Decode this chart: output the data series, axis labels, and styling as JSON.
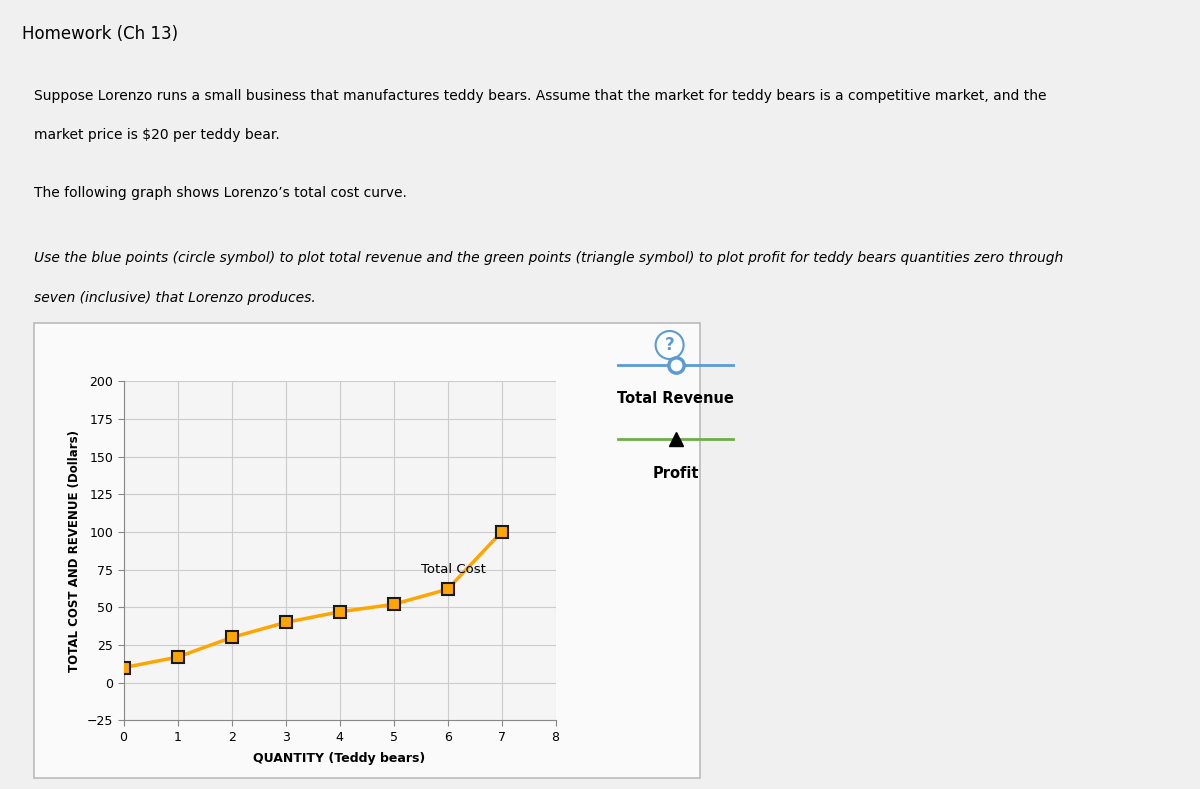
{
  "title_main": "Homework (Ch 13)",
  "desc_line1": "Suppose Lorenzo runs a small business that manufactures teddy bears. Assume that the market for teddy bears is a competitive market, and the",
  "desc_line2": "market price is $20 per teddy bear.",
  "desc_line3": "The following graph shows Lorenzo’s total cost curve.",
  "instruction_line1": "Use the blue points (circle symbol) to plot total revenue and the green points (triangle symbol) to plot profit for teddy bears quantities zero through",
  "instruction_line2": "seven (inclusive) that Lorenzo produces.",
  "quantities": [
    0,
    1,
    2,
    3,
    4,
    5,
    6,
    7
  ],
  "total_cost": [
    10,
    17,
    30,
    40,
    47,
    52,
    62,
    100
  ],
  "price": 20,
  "xlabel": "QUANTITY (Teddy bears)",
  "ylabel": "TOTAL COST AND REVENUE (Dollars)",
  "xlim": [
    0,
    8
  ],
  "ylim": [
    -25,
    200
  ],
  "yticks": [
    -25,
    0,
    25,
    50,
    75,
    100,
    125,
    150,
    175,
    200
  ],
  "xticks": [
    0,
    1,
    2,
    3,
    4,
    5,
    6,
    7,
    8
  ],
  "total_cost_color": "#FFA500",
  "total_cost_marker_edge": "#1a1a1a",
  "total_revenue_color": "#5B9BD5",
  "profit_color": "#70AD47",
  "grid_color": "#CCCCCC",
  "page_bg": "#F0F0F0",
  "header_bg": "#E8E8E8",
  "panel_bg": "#FFFFFF",
  "tc_label": "Total Cost",
  "legend_tr": "Total Revenue",
  "legend_pr": "Profit"
}
